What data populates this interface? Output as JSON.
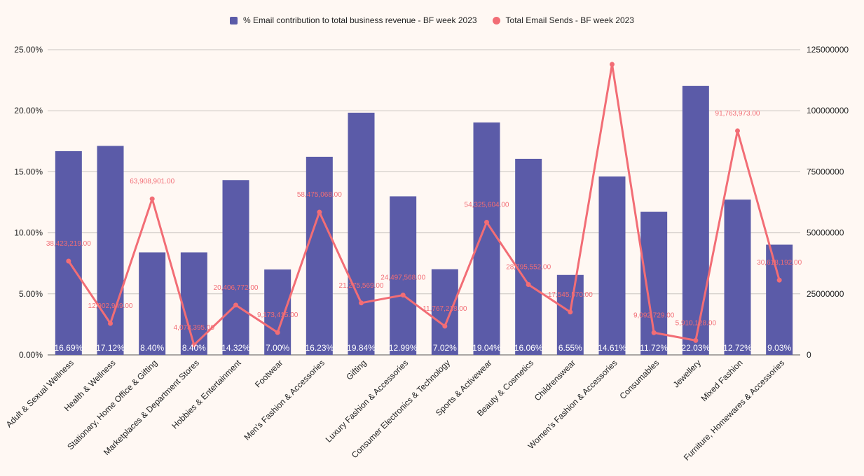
{
  "colors": {
    "bar": "#5b5ba8",
    "line": "#f26d75",
    "grid": "#c8c4c0",
    "background": "#fff8f3",
    "axis_text": "#222222"
  },
  "chart_data": {
    "type": "bar",
    "legend_position": "top",
    "grid": true,
    "categories": [
      "Adult & Sexual Wellness",
      "Health & Wellness",
      "Stationary, Home Office & Gifting",
      "Marketplaces & Department Stores",
      "Hobbies & Entertainment",
      "Footwear",
      "Men's Fashion & Accessories",
      "Gifting",
      "Luxury Fashion & Accessories",
      "Consumer Electronics & Technology",
      "Sports & Activewear",
      "Beauty & Cosmetics",
      "Childrenswear",
      "Women's Fashion & Accessories",
      "Consumables",
      "Jewellery",
      "Mixed Fashion",
      "Furniture, Homewares & Accessories"
    ],
    "series": [
      {
        "name": "% Email contribution to total business revenue - BF week 2023",
        "type": "bar",
        "axis": "left",
        "values": [
          16.69,
          17.12,
          8.4,
          8.4,
          14.32,
          7.0,
          16.23,
          19.84,
          12.99,
          7.02,
          19.04,
          16.06,
          6.55,
          14.61,
          11.72,
          22.03,
          12.72,
          9.03
        ],
        "labels": [
          "16.69%",
          "17.12%",
          "8.40%",
          "8.40%",
          "14.32%",
          "7.00%",
          "16.23%",
          "19.84%",
          "12.99%",
          "7.02%",
          "19.04%",
          "16.06%",
          "6.55%",
          "14.61%",
          "11.72%",
          "22.03%",
          "12.72%",
          "9.03%"
        ]
      },
      {
        "name": "Total Email Sends - BF week 2023",
        "type": "line",
        "axis": "right",
        "values": [
          38423219,
          12902949,
          63908901,
          4078395,
          20406772,
          9173415,
          58475068,
          21275569,
          24497568,
          11767218,
          54325604,
          28795552,
          17545570,
          119000000,
          9092729,
          5910128,
          91763973,
          30618192
        ],
        "labels": [
          "38,423,219.00",
          "12,902,949.00",
          "63,908,901.00",
          "4,078,395.00",
          "20,406,772.00",
          "9,173,415.00",
          "58,475,068.00",
          "21,275,569.00",
          "24,497,568.00",
          "11,767,218.00",
          "54,325,604.00",
          "28,795,552.00",
          "17,545,570.00",
          "",
          "9,092,729.00",
          "5,910,128.00",
          "91,763,973.00",
          "30,618,192.00"
        ]
      }
    ],
    "y_left": {
      "lim": [
        0,
        25
      ],
      "ticks": [
        "0.00%",
        "5.00%",
        "10.00%",
        "15.00%",
        "20.00%",
        "25.00%"
      ]
    },
    "y_right": {
      "lim": [
        0,
        125000000
      ],
      "ticks": [
        "0",
        "25000000",
        "50000000",
        "75000000",
        "100000000",
        "125000000"
      ]
    }
  }
}
